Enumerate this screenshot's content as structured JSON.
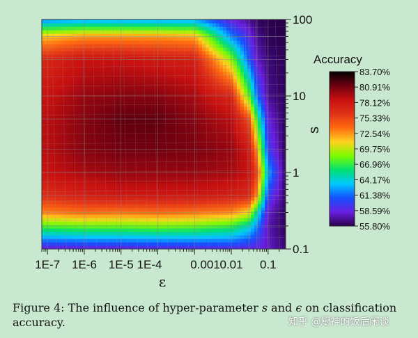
{
  "chart_data": {
    "type": "heatmap",
    "title": "",
    "xlabel": "ε",
    "ylabel": "s",
    "x_scale": "log",
    "y_scale": "log",
    "x_ticks": [
      {
        "value": 1e-07,
        "label": "1E-7"
      },
      {
        "value": 1e-06,
        "label": "1E-6"
      },
      {
        "value": 1e-05,
        "label": "1E-5"
      },
      {
        "value": 0.0001,
        "label": "1E-4"
      },
      {
        "value": 0.001,
        "label": "0.001"
      },
      {
        "value": 0.01,
        "label": "0.01"
      },
      {
        "value": 0.1,
        "label": "0.1"
      }
    ],
    "y_ticks": [
      {
        "value": 0.1,
        "label": "0.1"
      },
      {
        "value": 1,
        "label": "1"
      },
      {
        "value": 10,
        "label": "10"
      },
      {
        "value": 100,
        "label": "100"
      }
    ],
    "xlim": [
      7e-08,
      0.3
    ],
    "ylim": [
      0.1,
      100
    ],
    "colorbar": {
      "title": "Accuracy",
      "min": 55.8,
      "max": 83.7,
      "labels": [
        "83.70%",
        "80.91%",
        "78.12%",
        "75.33%",
        "72.54%",
        "69.75%",
        "66.96%",
        "64.17%",
        "61.38%",
        "58.59%",
        "55.80%"
      ],
      "colors": [
        "#000000",
        "#6e0010",
        "#c81010",
        "#e03218",
        "#ff6a10",
        "#ffd21e",
        "#7cfc00",
        "#00e070",
        "#00c8ff",
        "#1450ff",
        "#6a1ee0",
        "#28004a"
      ]
    },
    "x": [
      1e-07,
      1e-06,
      1e-05,
      0.0001,
      0.001,
      0.01,
      0.03,
      0.05,
      0.1,
      0.3
    ],
    "y": [
      0.1,
      0.2,
      0.3,
      0.5,
      1,
      2,
      5,
      10,
      30,
      60,
      100
    ],
    "z": [
      [
        58.0,
        58.2,
        58.3,
        58.5,
        58.6,
        58.8,
        58.6,
        58.4,
        58.0,
        56.5
      ],
      [
        67.5,
        68.0,
        68.0,
        68.3,
        68.0,
        67.0,
        64.5,
        62.0,
        57.5,
        56.0
      ],
      [
        72.8,
        73.5,
        73.2,
        73.5,
        73.2,
        72.5,
        70.5,
        65.0,
        58.0,
        56.0
      ],
      [
        76.5,
        77.5,
        78.0,
        78.0,
        78.0,
        77.5,
        76.8,
        72.5,
        60.0,
        56.2
      ],
      [
        78.5,
        79.5,
        80.0,
        80.0,
        80.0,
        79.5,
        78.5,
        75.5,
        63.0,
        56.2
      ],
      [
        79.0,
        80.5,
        81.0,
        81.0,
        80.8,
        80.0,
        78.0,
        72.5,
        60.0,
        56.0
      ],
      [
        79.0,
        80.5,
        81.5,
        81.5,
        80.5,
        79.0,
        75.0,
        67.0,
        58.5,
        56.0
      ],
      [
        78.5,
        80.0,
        80.5,
        80.5,
        79.5,
        77.0,
        68.0,
        61.5,
        57.0,
        56.0
      ],
      [
        77.0,
        78.5,
        78.5,
        78.0,
        77.5,
        69.0,
        61.0,
        58.0,
        56.5,
        56.0
      ],
      [
        71.5,
        72.5,
        72.5,
        72.5,
        72.0,
        62.0,
        59.0,
        57.0,
        56.0,
        55.8
      ],
      [
        62.0,
        62.5,
        62.5,
        62.5,
        62.5,
        58.5,
        57.0,
        56.2,
        55.8,
        55.8
      ]
    ]
  },
  "caption": {
    "prefix": "Figure 4: The influence of hyper-parameter ",
    "s": "s",
    "middle": " and ",
    "eps": "ϵ",
    "suffix": " on classification accuracy."
  },
  "watermark": "知乎 @厨神的饭后闲谈"
}
